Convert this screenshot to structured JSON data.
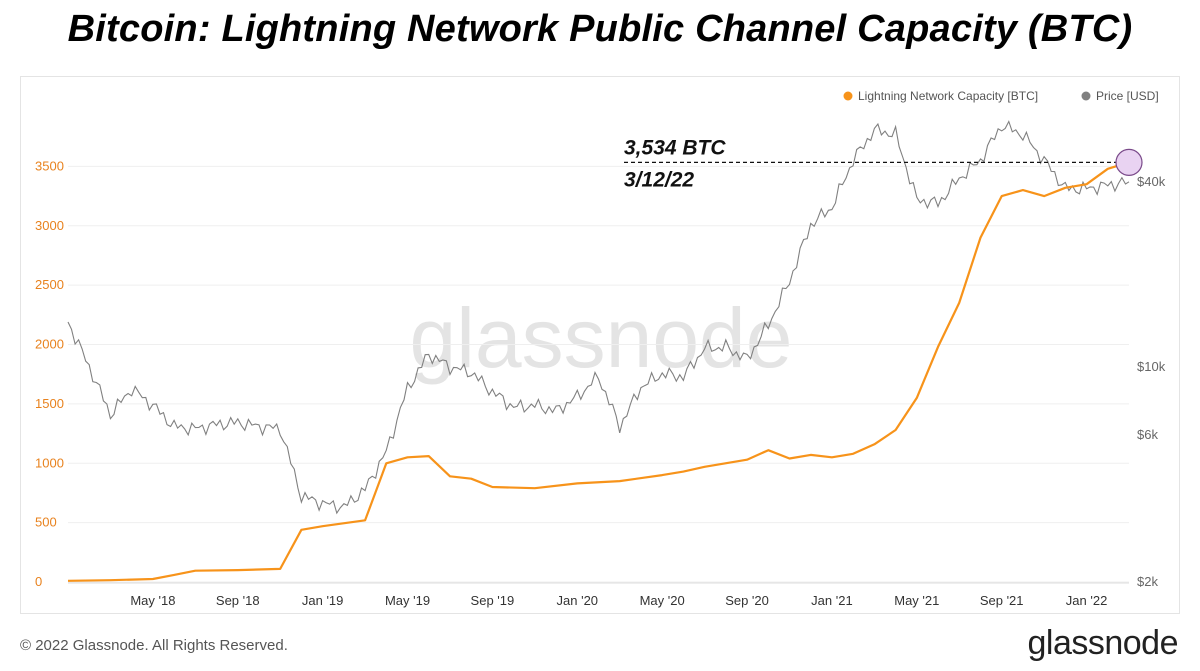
{
  "title": "Bitcoin: Lightning Network Public Channel Capacity (BTC)",
  "footer": {
    "copyright": "© 2022 Glassnode. All Rights Reserved.",
    "logo": "glassnode"
  },
  "watermark": "glassnode",
  "colors": {
    "capacity": "#f7931a",
    "price": "#808080",
    "left_axis": "#e8821e",
    "right_axis": "#666666",
    "highlight_fill": "#e9d3f2",
    "highlight_stroke": "#7a4a8a"
  },
  "chart_data": {
    "type": "line",
    "title": "Bitcoin: Lightning Network Public Channel Capacity (BTC)",
    "legend": [
      "Lightning Network Capacity [BTC]",
      "Price [USD]"
    ],
    "legend_position": "top-right",
    "x_ticks": [
      "May '18",
      "Sep '18",
      "Jan '19",
      "May '19",
      "Sep '19",
      "Jan '20",
      "May '20",
      "Sep '20",
      "Jan '21",
      "May '21",
      "Sep '21",
      "Jan '22"
    ],
    "x_range": [
      "Jan '18",
      "Mar '22"
    ],
    "y_left": {
      "label": "Lightning Network Capacity [BTC]",
      "ticks": [
        "0",
        "500",
        "1000",
        "1500",
        "2000",
        "2500",
        "3000",
        "3500"
      ],
      "range": [
        0,
        4000
      ]
    },
    "y_right": {
      "label": "Price [USD]",
      "scale": "log",
      "ticks": [
        "$2k",
        "$6k",
        "$10k",
        "$40k"
      ],
      "range": [
        2000,
        70000
      ]
    },
    "series": [
      {
        "name": "Lightning Network Capacity [BTC]",
        "months": [
          0,
          2,
          4,
          5,
          6,
          8,
          10,
          11,
          12,
          14,
          15,
          16,
          17,
          18,
          19,
          20,
          22,
          24,
          26,
          28,
          29,
          30,
          32,
          33,
          34,
          35,
          36,
          37,
          38,
          39,
          40,
          41,
          42,
          43,
          44,
          45,
          46,
          47,
          48,
          49,
          50
        ],
        "values": [
          10,
          15,
          25,
          60,
          95,
          100,
          110,
          440,
          470,
          520,
          1000,
          1050,
          1060,
          890,
          870,
          800,
          790,
          830,
          850,
          900,
          930,
          970,
          1030,
          1110,
          1040,
          1070,
          1050,
          1080,
          1160,
          1280,
          1550,
          1980,
          2350,
          2900,
          3250,
          3300,
          3250,
          3320,
          3350,
          3480,
          3534
        ]
      },
      {
        "name": "Price [USD]",
        "months": [
          0,
          1,
          2,
          3,
          4,
          5,
          6,
          7,
          8,
          9,
          10,
          11,
          12,
          13,
          14,
          15,
          16,
          17,
          18,
          19,
          20,
          21,
          22,
          23,
          24,
          25,
          26,
          27,
          28,
          29,
          30,
          31,
          32,
          33,
          34,
          35,
          36,
          37,
          38,
          39,
          40,
          41,
          42,
          43,
          44,
          45,
          46,
          47,
          48,
          49,
          50
        ],
        "values": [
          14000,
          10000,
          7000,
          8500,
          7500,
          6400,
          6300,
          6500,
          6600,
          6400,
          6300,
          3800,
          3600,
          3500,
          4000,
          5300,
          8500,
          11000,
          10000,
          9600,
          8300,
          7400,
          7500,
          7200,
          8000,
          9300,
          6400,
          8600,
          9500,
          9300,
          11500,
          11600,
          10600,
          13700,
          19000,
          29000,
          33000,
          47000,
          59000,
          57000,
          35000,
          34000,
          41000,
          47000,
          61000,
          57000,
          47000,
          38000,
          38000,
          39000,
          40000
        ]
      }
    ],
    "annotation": {
      "value": "3,534 BTC",
      "date": "3/12/22",
      "target_month": 50,
      "target_value": 3534
    }
  }
}
